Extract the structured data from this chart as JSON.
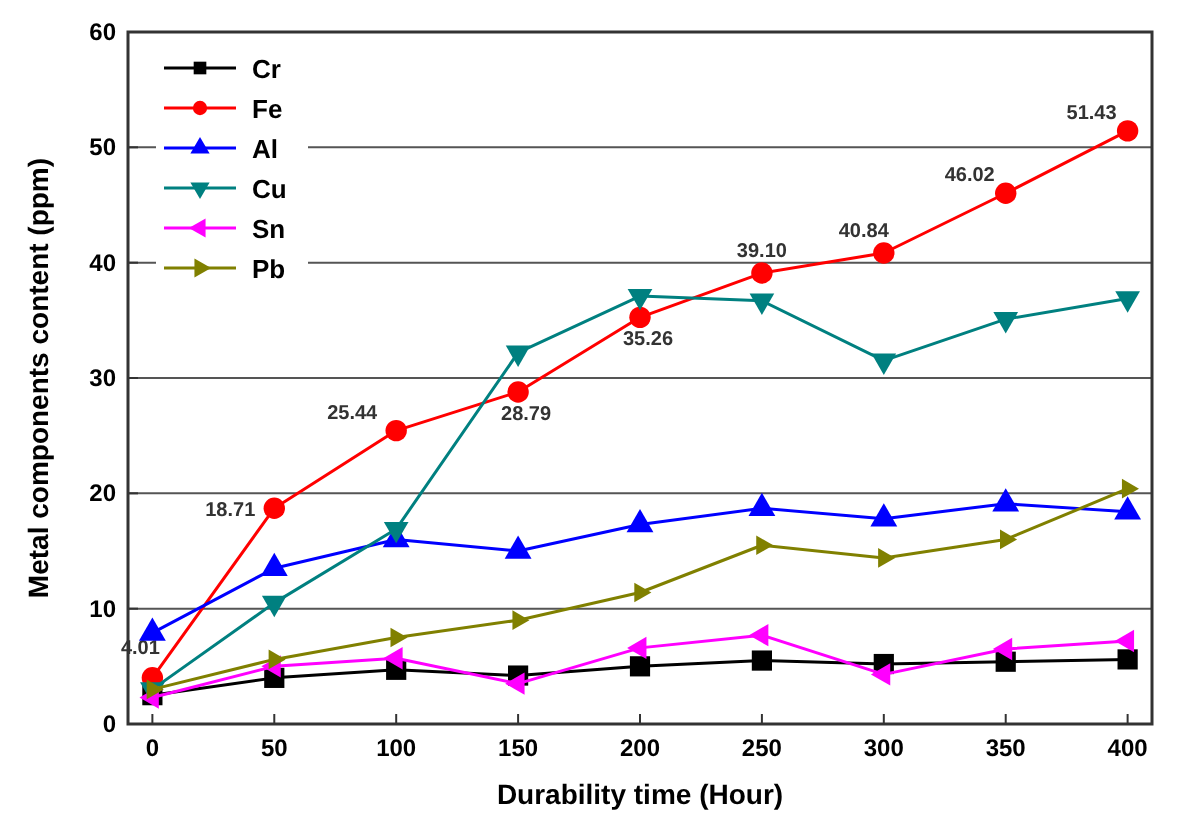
{
  "chart_data": {
    "type": "line",
    "xlabel": "Durability time (Hour)",
    "ylabel": "Metal components content (ppm)",
    "x": [
      0,
      50,
      100,
      150,
      200,
      250,
      300,
      350,
      400
    ],
    "xlim": [
      -10,
      410
    ],
    "xticks": [
      0,
      50,
      100,
      150,
      200,
      250,
      300,
      350,
      400
    ],
    "ylim": [
      0,
      60
    ],
    "yticks": [
      0,
      10,
      20,
      30,
      40,
      50,
      60
    ],
    "grid": "y",
    "legend": "top left",
    "line_style": "solid",
    "series": [
      {
        "name": "Cr",
        "color": "#000000",
        "marker": "square",
        "values": [
          2.5,
          4.0,
          4.7,
          4.2,
          5.0,
          5.5,
          5.2,
          5.4,
          5.6
        ]
      },
      {
        "name": "Fe",
        "color": "#ff0000",
        "marker": "circle",
        "values": [
          4.01,
          18.71,
          25.44,
          28.79,
          35.26,
          39.1,
          40.84,
          46.02,
          51.43
        ],
        "value_labels": [
          "4.01",
          "18.71",
          "25.44",
          "28.79",
          "35.26",
          "39.10",
          "40.84",
          "46.02",
          "51.43"
        ]
      },
      {
        "name": "Al",
        "color": "#0000ff",
        "marker": "triangle",
        "values": [
          7.9,
          13.5,
          16.0,
          15.0,
          17.3,
          18.7,
          17.8,
          19.1,
          18.4
        ]
      },
      {
        "name": "Cu",
        "color": "#008080",
        "marker": "triangle-down",
        "values": [
          3.0,
          10.5,
          16.9,
          32.2,
          37.1,
          36.7,
          31.5,
          35.1,
          36.9
        ]
      },
      {
        "name": "Sn",
        "color": "#ff00ff",
        "marker": "triangle-left",
        "values": [
          2.3,
          5.0,
          5.7,
          3.5,
          6.6,
          7.7,
          4.3,
          6.5,
          7.2
        ]
      },
      {
        "name": "Pb",
        "color": "#808000",
        "marker": "triangle-right",
        "values": [
          3.0,
          5.6,
          7.5,
          9.0,
          11.4,
          15.5,
          14.4,
          16.0,
          20.4
        ]
      }
    ]
  }
}
